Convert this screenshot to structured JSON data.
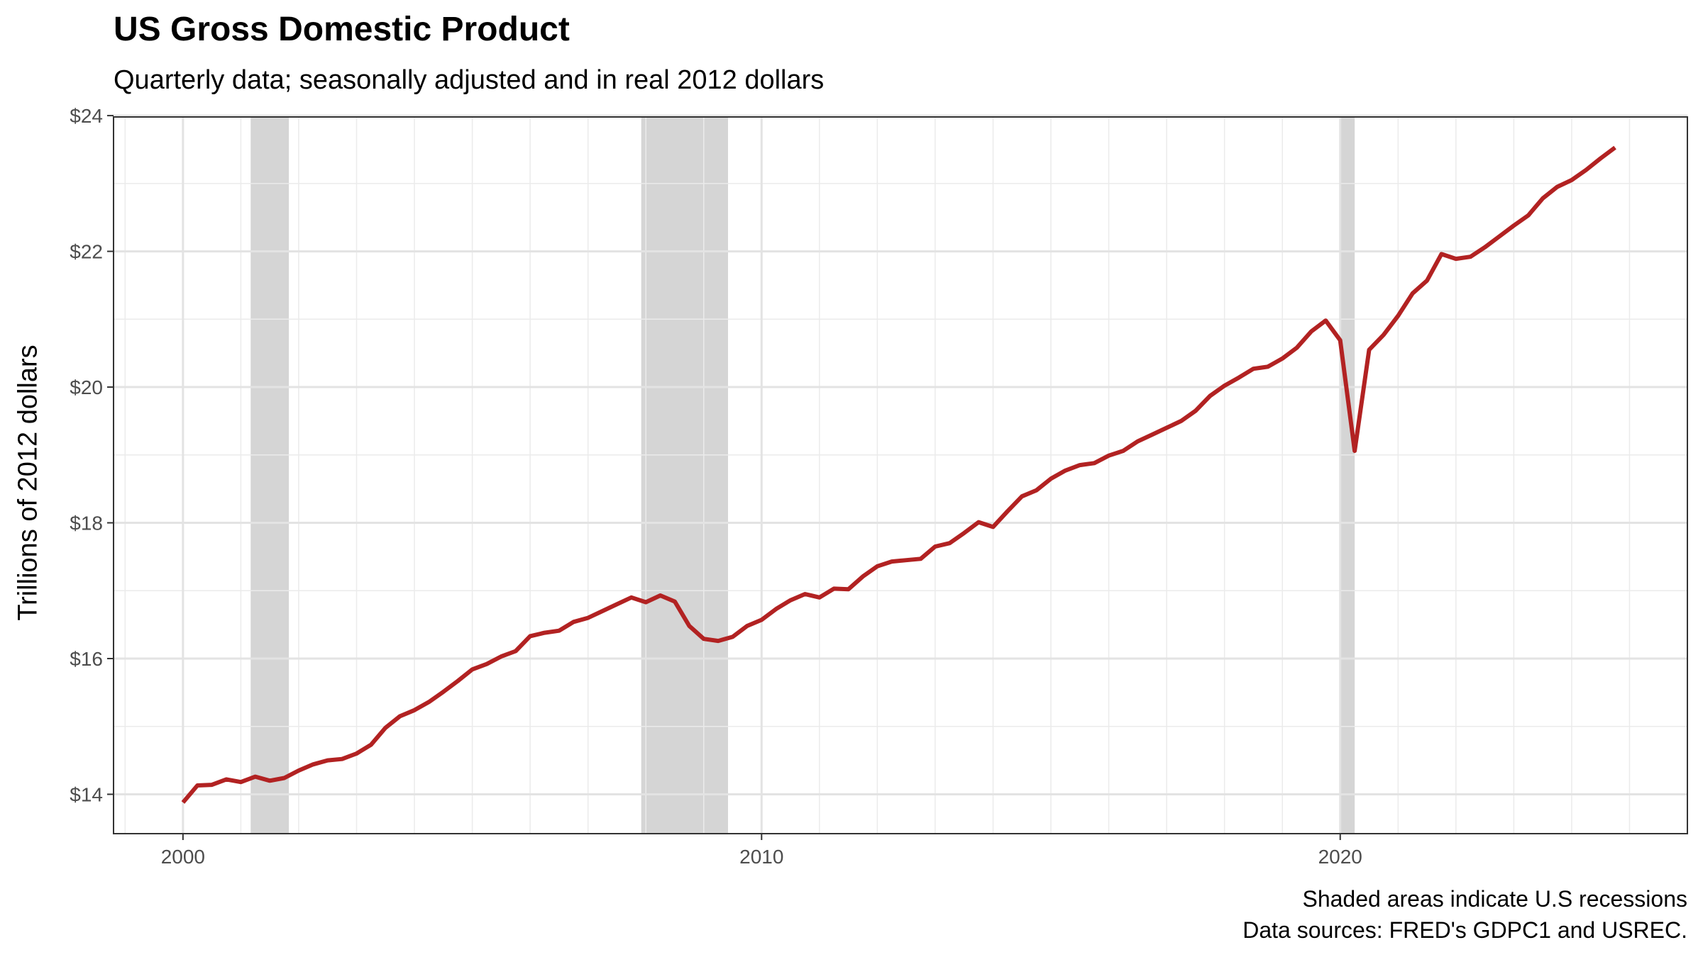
{
  "chart_data": {
    "type": "line",
    "title": "US Gross Domestic Product",
    "subtitle": "Quarterly data; seasonally adjusted and in real 2012 dollars",
    "xlabel": "",
    "ylabel": "Trillions of 2012 dollars",
    "caption": [
      "Shaded areas indicate U.S recessions",
      "Data sources: FRED's GDPC1 and USREC."
    ],
    "xlim": [
      1998.8,
      2026.0
    ],
    "ylim": [
      13.42,
      23.98
    ],
    "x_ticks": [
      2000,
      2010,
      2020
    ],
    "x_tick_labels": [
      "2000",
      "2010",
      "2020"
    ],
    "y_ticks": [
      14,
      16,
      18,
      20,
      22,
      24
    ],
    "y_tick_labels": [
      "$14",
      "$16",
      "$18",
      "$20",
      "$22",
      "$24"
    ],
    "grid": true,
    "line_color": "#b22222",
    "recession_color": "#d3d3d3",
    "recessions": [
      [
        2001.17,
        2001.83
      ],
      [
        2007.92,
        2009.42
      ],
      [
        2020.0,
        2020.25
      ]
    ],
    "series": [
      {
        "name": "GDPC1",
        "start": 2000.0,
        "step": 0.25,
        "values": [
          13.88,
          14.13,
          14.14,
          14.22,
          14.18,
          14.26,
          14.2,
          14.24,
          14.35,
          14.44,
          14.5,
          14.52,
          14.6,
          14.73,
          14.98,
          15.15,
          15.24,
          15.36,
          15.51,
          15.67,
          15.84,
          15.92,
          16.03,
          16.11,
          16.33,
          16.38,
          16.41,
          16.54,
          16.6,
          16.7,
          16.8,
          16.9,
          16.83,
          16.93,
          16.84,
          16.48,
          16.29,
          16.26,
          16.32,
          16.48,
          16.57,
          16.73,
          16.86,
          16.95,
          16.9,
          17.03,
          17.02,
          17.21,
          17.36,
          17.43,
          17.45,
          17.47,
          17.65,
          17.7,
          17.85,
          18.01,
          17.94,
          18.17,
          18.39,
          18.48,
          18.65,
          18.77,
          18.85,
          18.88,
          18.99,
          19.06,
          19.2,
          19.3,
          19.4,
          19.5,
          19.65,
          19.87,
          20.02,
          20.14,
          20.27,
          20.3,
          20.42,
          20.58,
          20.82,
          20.98,
          20.69,
          19.06,
          20.55,
          20.77,
          21.05,
          21.38,
          21.57,
          21.96,
          21.89,
          21.92,
          22.06,
          22.22,
          22.38,
          22.53,
          22.78,
          22.95,
          23.05,
          23.2,
          23.37,
          23.53
        ]
      }
    ]
  }
}
